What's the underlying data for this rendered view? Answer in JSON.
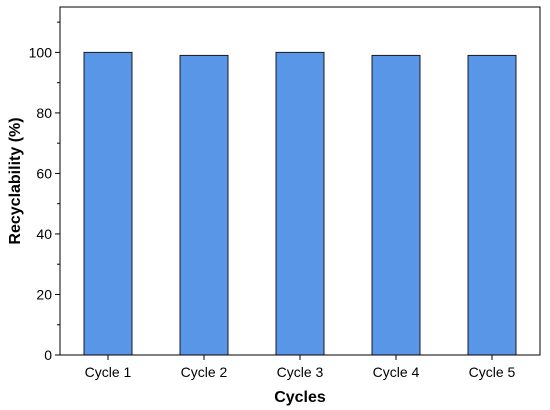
{
  "chart_data": {
    "type": "bar",
    "categories": [
      "Cycle 1",
      "Cycle 2",
      "Cycle 3",
      "Cycle 4",
      "Cycle 5"
    ],
    "values": [
      100,
      99,
      100,
      99,
      99
    ],
    "title": "",
    "xlabel": "Cycles",
    "ylabel": "Recyclability (%)",
    "ylim": [
      0,
      115
    ],
    "yticks": [
      0,
      20,
      40,
      60,
      80,
      100
    ],
    "grid": false,
    "bar_color": "#5a96e8",
    "bar_edge_color": "#1a1a1a"
  }
}
